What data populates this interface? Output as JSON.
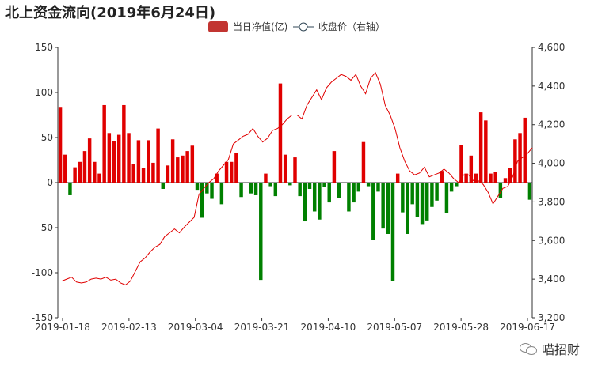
{
  "title": "北上资金流向(2019年6月24日)",
  "watermark": {
    "text": "喵招财",
    "icon": "wechat-icon"
  },
  "chart_data": {
    "type": "bar+line",
    "legend": [
      {
        "name": "当日净值(亿)",
        "symbol": "rect",
        "color": "#c23531"
      },
      {
        "name": "收盘价（右轴）",
        "symbol": "circle-line",
        "color": "#2f4554"
      }
    ],
    "xlabels": [
      "2019-01-18",
      "2019-02-13",
      "2019-03-04",
      "2019-03-21",
      "2019-04-10",
      "2019-05-07",
      "2019-05-28",
      "2019-06-17"
    ],
    "y_left": {
      "min": -150,
      "max": 150,
      "ticks": [
        -150,
        -100,
        -50,
        0,
        50,
        100,
        150
      ]
    },
    "y_right": {
      "min": 3200,
      "max": 4600,
      "ticks": [
        "3,200",
        "3,400",
        "3,600",
        "3,800",
        "4,000",
        "4,200",
        "4,400",
        "4,600"
      ],
      "tick_values": [
        3200,
        3400,
        3600,
        3800,
        4000,
        4200,
        4400,
        4600
      ]
    },
    "colors": {
      "positive": "#e00000",
      "negative": "#008000",
      "line": "#e00000",
      "axis": "#333333"
    },
    "bars": [
      84,
      31,
      -14,
      17,
      23,
      35,
      49,
      23,
      10,
      86,
      55,
      46,
      53,
      86,
      55,
      21,
      47,
      16,
      47,
      22,
      60,
      -7,
      19,
      48,
      28,
      30,
      35,
      41,
      -8,
      -39,
      -12,
      -18,
      10,
      -24,
      23,
      23,
      33,
      -16,
      0,
      -12,
      -14,
      -108,
      10,
      -4,
      -15,
      110,
      31,
      -3,
      28,
      -15,
      -43,
      -7,
      -32,
      -41,
      -5,
      -22,
      35,
      -17,
      0,
      -32,
      -22,
      -10,
      45,
      -4,
      -64,
      -10,
      -51,
      -57,
      -109,
      10,
      -33,
      -57,
      -24,
      -38,
      -46,
      -42,
      -27,
      -20,
      13,
      -34,
      -10,
      -4,
      42,
      10,
      30,
      10,
      78,
      69,
      10,
      12,
      -17,
      5,
      16,
      48,
      55,
      72,
      -19
    ],
    "close_line": [
      3390,
      3400,
      3410,
      3385,
      3380,
      3385,
      3400,
      3405,
      3400,
      3410,
      3395,
      3400,
      3380,
      3370,
      3390,
      3440,
      3490,
      3510,
      3540,
      3565,
      3580,
      3620,
      3640,
      3660,
      3640,
      3670,
      3695,
      3720,
      3840,
      3870,
      3900,
      3920,
      3960,
      3990,
      4020,
      4100,
      4120,
      4140,
      4150,
      4180,
      4140,
      4110,
      4130,
      4170,
      4180,
      4200,
      4230,
      4250,
      4250,
      4230,
      4300,
      4340,
      4380,
      4330,
      4390,
      4420,
      4440,
      4460,
      4450,
      4430,
      4460,
      4400,
      4360,
      4440,
      4470,
      4410,
      4300,
      4250,
      4180,
      4080,
      4010,
      3960,
      3940,
      3950,
      3980,
      3930,
      3940,
      3950,
      3970,
      3950,
      3920,
      3900,
      3940,
      3940,
      3910,
      3910,
      3890,
      3850,
      3790,
      3830,
      3870,
      3880,
      3930,
      4010,
      4030,
      4050,
      4080
    ]
  }
}
